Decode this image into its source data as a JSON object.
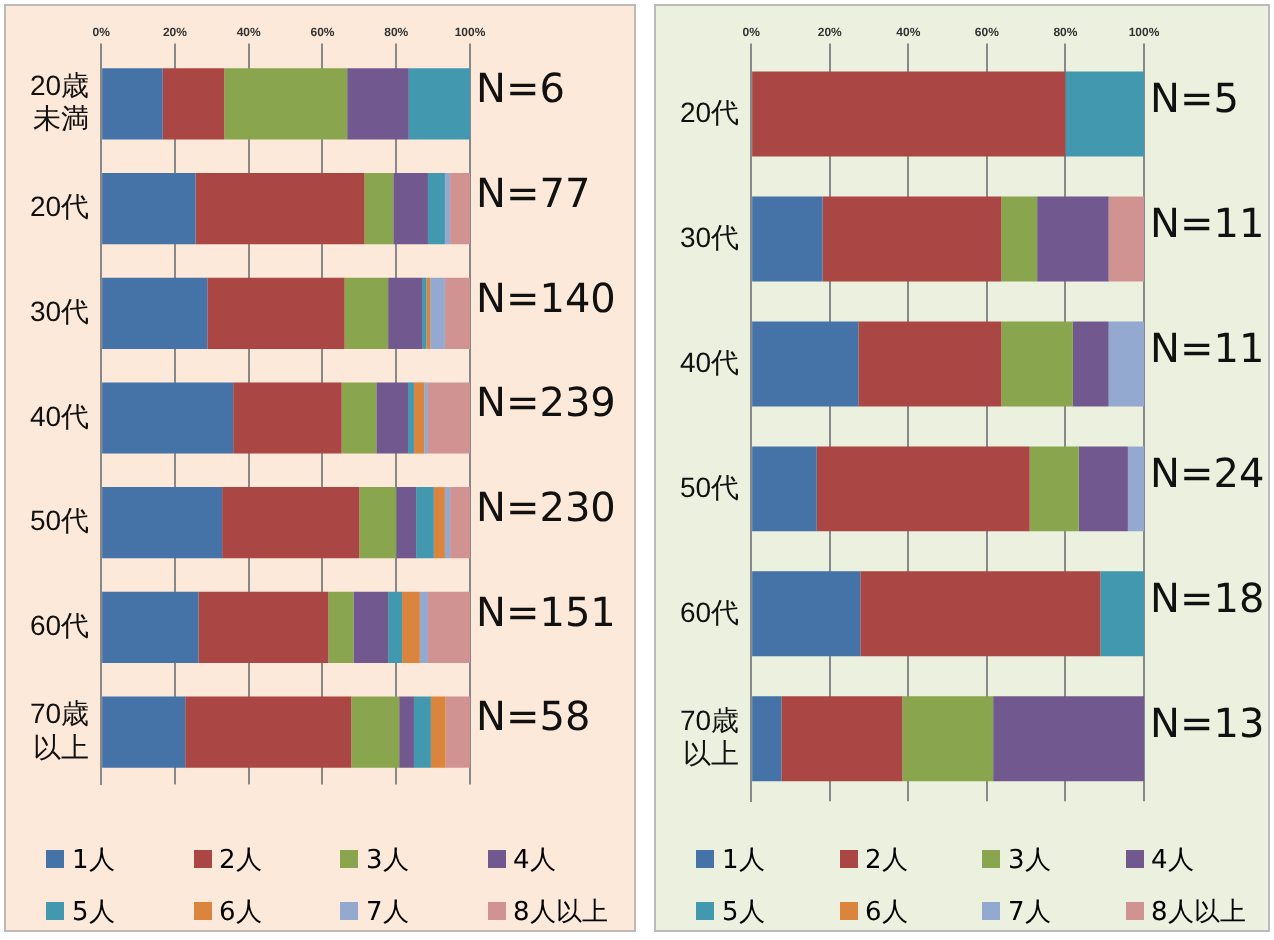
{
  "chart_data": [
    {
      "type": "bar",
      "orientation": "horizontal",
      "stacked": true,
      "grid": "x",
      "legend": "bottom",
      "categories": [
        "20歳未満",
        "20代",
        "30代",
        "40代",
        "50代",
        "60代",
        "70歳以上"
      ],
      "xlim": [
        0,
        100
      ],
      "xticks": [
        {
          "value": 0,
          "label": "0%"
        },
        {
          "value": 20,
          "label": "20%"
        },
        {
          "value": 40,
          "label": "40%"
        },
        {
          "value": 60,
          "label": "60%"
        },
        {
          "value": 80,
          "label": "80%"
        },
        {
          "value": 100,
          "label": "100%"
        }
      ],
      "series": [
        {
          "name": "1人",
          "color": "#4572a7",
          "values": [
            16.7,
            25.6,
            28.8,
            35.8,
            32.8,
            26.4,
            22.8
          ]
        },
        {
          "name": "2人",
          "color": "#aa4643",
          "values": [
            16.7,
            45.8,
            37.2,
            29.4,
            37.2,
            35.2,
            45
          ]
        },
        {
          "name": "3人",
          "color": "#89a54e",
          "values": [
            33.3,
            7.8,
            11.8,
            9.4,
            10,
            6.8,
            13
          ]
        },
        {
          "name": "4人",
          "color": "#71588f",
          "values": [
            16.7,
            9.4,
            9.2,
            8.6,
            5.4,
            9.4,
            4
          ]
        },
        {
          "name": "5人",
          "color": "#4198af",
          "values": [
            16.7,
            4.6,
            1.2,
            1.6,
            4.8,
            3.8,
            4.6
          ]
        },
        {
          "name": "6人",
          "color": "#db843d",
          "values": [
            0,
            0,
            1,
            2.8,
            3,
            4.8,
            4
          ]
        },
        {
          "name": "7人",
          "color": "#93a9cf",
          "values": [
            0,
            1.4,
            4,
            1,
            1.4,
            2.2,
            0
          ]
        },
        {
          "name": "8人以上",
          "color": "#d19392",
          "values": [
            0,
            5.4,
            6.8,
            11.4,
            5.4,
            11.4,
            6.6
          ]
        }
      ],
      "annotations": [
        "N=6",
        "N=77",
        "N=140",
        "N=239",
        "N=230",
        "N=151",
        "N=58"
      ]
    },
    {
      "type": "bar",
      "orientation": "horizontal",
      "stacked": true,
      "grid": "x",
      "legend": "bottom",
      "categories": [
        "20代",
        "30代",
        "40代",
        "50代",
        "60代",
        "70歳以上"
      ],
      "xlim": [
        0,
        100
      ],
      "xticks": [
        {
          "value": 0,
          "label": "0%"
        },
        {
          "value": 20,
          "label": "20%"
        },
        {
          "value": 40,
          "label": "40%"
        },
        {
          "value": 60,
          "label": "60%"
        },
        {
          "value": 80,
          "label": "80%"
        },
        {
          "value": 100,
          "label": "100%"
        }
      ],
      "series": [
        {
          "name": "1人",
          "color": "#4572a7",
          "values": [
            0,
            18.2,
            27.3,
            16.7,
            27.8,
            7.7
          ]
        },
        {
          "name": "2人",
          "color": "#aa4643",
          "values": [
            80,
            45.5,
            36.4,
            54.2,
            61.1,
            30.8
          ]
        },
        {
          "name": "3人",
          "color": "#89a54e",
          "values": [
            0,
            9.1,
            18.2,
            12.5,
            0,
            23.1
          ]
        },
        {
          "name": "4人",
          "color": "#71588f",
          "values": [
            0,
            18.2,
            9.1,
            12.5,
            0,
            38.5
          ]
        },
        {
          "name": "5人",
          "color": "#4198af",
          "values": [
            20,
            0,
            0,
            0,
            11.1,
            0
          ]
        },
        {
          "name": "6人",
          "color": "#db843d",
          "values": [
            0,
            0,
            0,
            0,
            0,
            0
          ]
        },
        {
          "name": "7人",
          "color": "#93a9cf",
          "values": [
            0,
            0,
            9.1,
            4.2,
            0,
            0
          ]
        },
        {
          "name": "8人以上",
          "color": "#d19392",
          "values": [
            0,
            9.1,
            0,
            0,
            0,
            0
          ]
        }
      ],
      "annotations": [
        "N=5",
        "N=11",
        "N=11",
        "N=24",
        "N=18",
        "N=13"
      ]
    }
  ]
}
